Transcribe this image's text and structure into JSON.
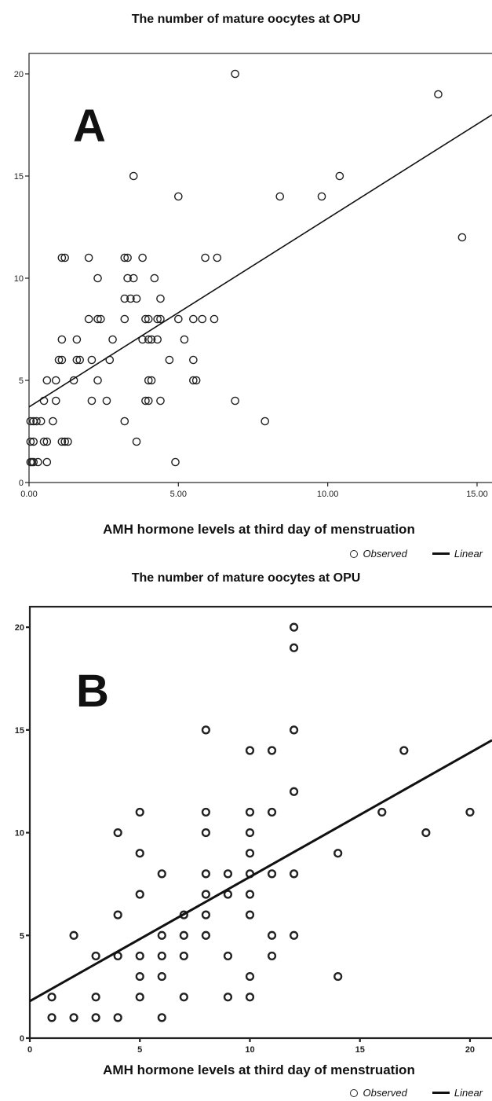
{
  "chart_data": [
    {
      "panel_label": "A",
      "type": "scatter",
      "title": "The number of mature oocytes at OPU",
      "xlabel": "AMH hormone levels at third day of menstruation",
      "xlim": [
        0,
        15.5
      ],
      "ylim": [
        0,
        21
      ],
      "xticks": [
        0,
        5,
        10,
        15
      ],
      "xtick_labels": [
        "0.00",
        "5.00",
        "10.00",
        "15.00"
      ],
      "yticks": [
        0,
        5,
        10,
        15,
        20
      ],
      "ytick_labels": [
        "0",
        "5",
        "10",
        "15",
        "20"
      ],
      "legend": {
        "observed": "Observed",
        "linear": "Linear"
      },
      "fit_line": {
        "x": [
          0,
          15.5
        ],
        "y": [
          3.7,
          18.0
        ]
      },
      "points": [
        [
          0.05,
          1
        ],
        [
          0.1,
          1
        ],
        [
          0.15,
          1
        ],
        [
          0.3,
          1
        ],
        [
          0.6,
          1
        ],
        [
          4.9,
          1
        ],
        [
          0.05,
          2
        ],
        [
          0.15,
          2
        ],
        [
          0.5,
          2
        ],
        [
          0.6,
          2
        ],
        [
          1.1,
          2
        ],
        [
          1.2,
          2
        ],
        [
          1.3,
          2
        ],
        [
          3.6,
          2
        ],
        [
          0.05,
          3
        ],
        [
          0.15,
          3
        ],
        [
          0.25,
          3
        ],
        [
          0.4,
          3
        ],
        [
          0.8,
          3
        ],
        [
          3.2,
          3
        ],
        [
          7.9,
          3
        ],
        [
          0.5,
          4
        ],
        [
          0.9,
          4
        ],
        [
          2.1,
          4
        ],
        [
          2.6,
          4
        ],
        [
          3.9,
          4
        ],
        [
          4.0,
          4
        ],
        [
          4.4,
          4
        ],
        [
          6.9,
          4
        ],
        [
          0.6,
          5
        ],
        [
          0.9,
          5
        ],
        [
          1.5,
          5
        ],
        [
          2.3,
          5
        ],
        [
          4.0,
          5
        ],
        [
          4.1,
          5
        ],
        [
          5.5,
          5
        ],
        [
          5.6,
          5
        ],
        [
          1.0,
          6
        ],
        [
          1.1,
          6
        ],
        [
          1.6,
          6
        ],
        [
          1.7,
          6
        ],
        [
          2.1,
          6
        ],
        [
          2.7,
          6
        ],
        [
          4.7,
          6
        ],
        [
          5.5,
          6
        ],
        [
          1.1,
          7
        ],
        [
          1.6,
          7
        ],
        [
          2.8,
          7
        ],
        [
          3.8,
          7
        ],
        [
          4.0,
          7
        ],
        [
          4.1,
          7
        ],
        [
          4.3,
          7
        ],
        [
          5.2,
          7
        ],
        [
          2.0,
          8
        ],
        [
          2.3,
          8
        ],
        [
          2.4,
          8
        ],
        [
          3.2,
          8
        ],
        [
          3.9,
          8
        ],
        [
          4.0,
          8
        ],
        [
          4.3,
          8
        ],
        [
          4.4,
          8
        ],
        [
          5.0,
          8
        ],
        [
          5.5,
          8
        ],
        [
          5.8,
          8
        ],
        [
          6.2,
          8
        ],
        [
          3.2,
          9
        ],
        [
          3.4,
          9
        ],
        [
          3.6,
          9
        ],
        [
          4.4,
          9
        ],
        [
          2.3,
          10
        ],
        [
          3.3,
          10
        ],
        [
          3.5,
          10
        ],
        [
          4.2,
          10
        ],
        [
          1.1,
          11
        ],
        [
          1.2,
          11
        ],
        [
          2.0,
          11
        ],
        [
          3.2,
          11
        ],
        [
          3.3,
          11
        ],
        [
          3.8,
          11
        ],
        [
          5.9,
          11
        ],
        [
          6.3,
          11
        ],
        [
          3.5,
          15
        ],
        [
          5.0,
          14
        ],
        [
          8.4,
          14
        ],
        [
          9.8,
          14
        ],
        [
          10.4,
          15
        ],
        [
          6.9,
          20
        ],
        [
          13.7,
          19
        ],
        [
          14.5,
          12
        ]
      ]
    },
    {
      "panel_label": "B",
      "type": "scatter",
      "title": "The number of mature oocytes at OPU",
      "xlabel": "AMH hormone levels at third day of menstruation",
      "xlim": [
        0,
        21
      ],
      "ylim": [
        0,
        21
      ],
      "xticks": [
        0,
        5,
        10,
        15,
        20
      ],
      "xtick_labels": [
        "0",
        "5",
        "10",
        "15",
        "20"
      ],
      "yticks": [
        0,
        5,
        10,
        15,
        20
      ],
      "ytick_labels": [
        "0",
        "5",
        "10",
        "15",
        "20"
      ],
      "legend": {
        "observed": "Observed",
        "linear": "Linear"
      },
      "fit_line": {
        "x": [
          0,
          21
        ],
        "y": [
          1.8,
          14.5
        ]
      },
      "points": [
        [
          1,
          1
        ],
        [
          2,
          1
        ],
        [
          3,
          1
        ],
        [
          4,
          1
        ],
        [
          6,
          1
        ],
        [
          1,
          2
        ],
        [
          3,
          2
        ],
        [
          5,
          2
        ],
        [
          7,
          2
        ],
        [
          9,
          2
        ],
        [
          10,
          2
        ],
        [
          3,
          4
        ],
        [
          4,
          4
        ],
        [
          5,
          4
        ],
        [
          6,
          4
        ],
        [
          7,
          4
        ],
        [
          9,
          4
        ],
        [
          11,
          4
        ],
        [
          5,
          3
        ],
        [
          6,
          3
        ],
        [
          10,
          3
        ],
        [
          14,
          3
        ],
        [
          2,
          5
        ],
        [
          6,
          5
        ],
        [
          7,
          5
        ],
        [
          8,
          5
        ],
        [
          11,
          5
        ],
        [
          12,
          5
        ],
        [
          4,
          6
        ],
        [
          7,
          6
        ],
        [
          8,
          6
        ],
        [
          10,
          6
        ],
        [
          5,
          7
        ],
        [
          8,
          7
        ],
        [
          9,
          7
        ],
        [
          10,
          7
        ],
        [
          6,
          8
        ],
        [
          8,
          8
        ],
        [
          9,
          8
        ],
        [
          10,
          8
        ],
        [
          11,
          8
        ],
        [
          12,
          8
        ],
        [
          5,
          9
        ],
        [
          10,
          9
        ],
        [
          14,
          9
        ],
        [
          4,
          10
        ],
        [
          8,
          10
        ],
        [
          10,
          10
        ],
        [
          18,
          10
        ],
        [
          5,
          11
        ],
        [
          8,
          11
        ],
        [
          10,
          11
        ],
        [
          11,
          11
        ],
        [
          16,
          11
        ],
        [
          20,
          11
        ],
        [
          12,
          12
        ],
        [
          10,
          14
        ],
        [
          11,
          14
        ],
        [
          17,
          14
        ],
        [
          8,
          15
        ],
        [
          12,
          15
        ],
        [
          12,
          19
        ],
        [
          12,
          20
        ]
      ]
    }
  ]
}
